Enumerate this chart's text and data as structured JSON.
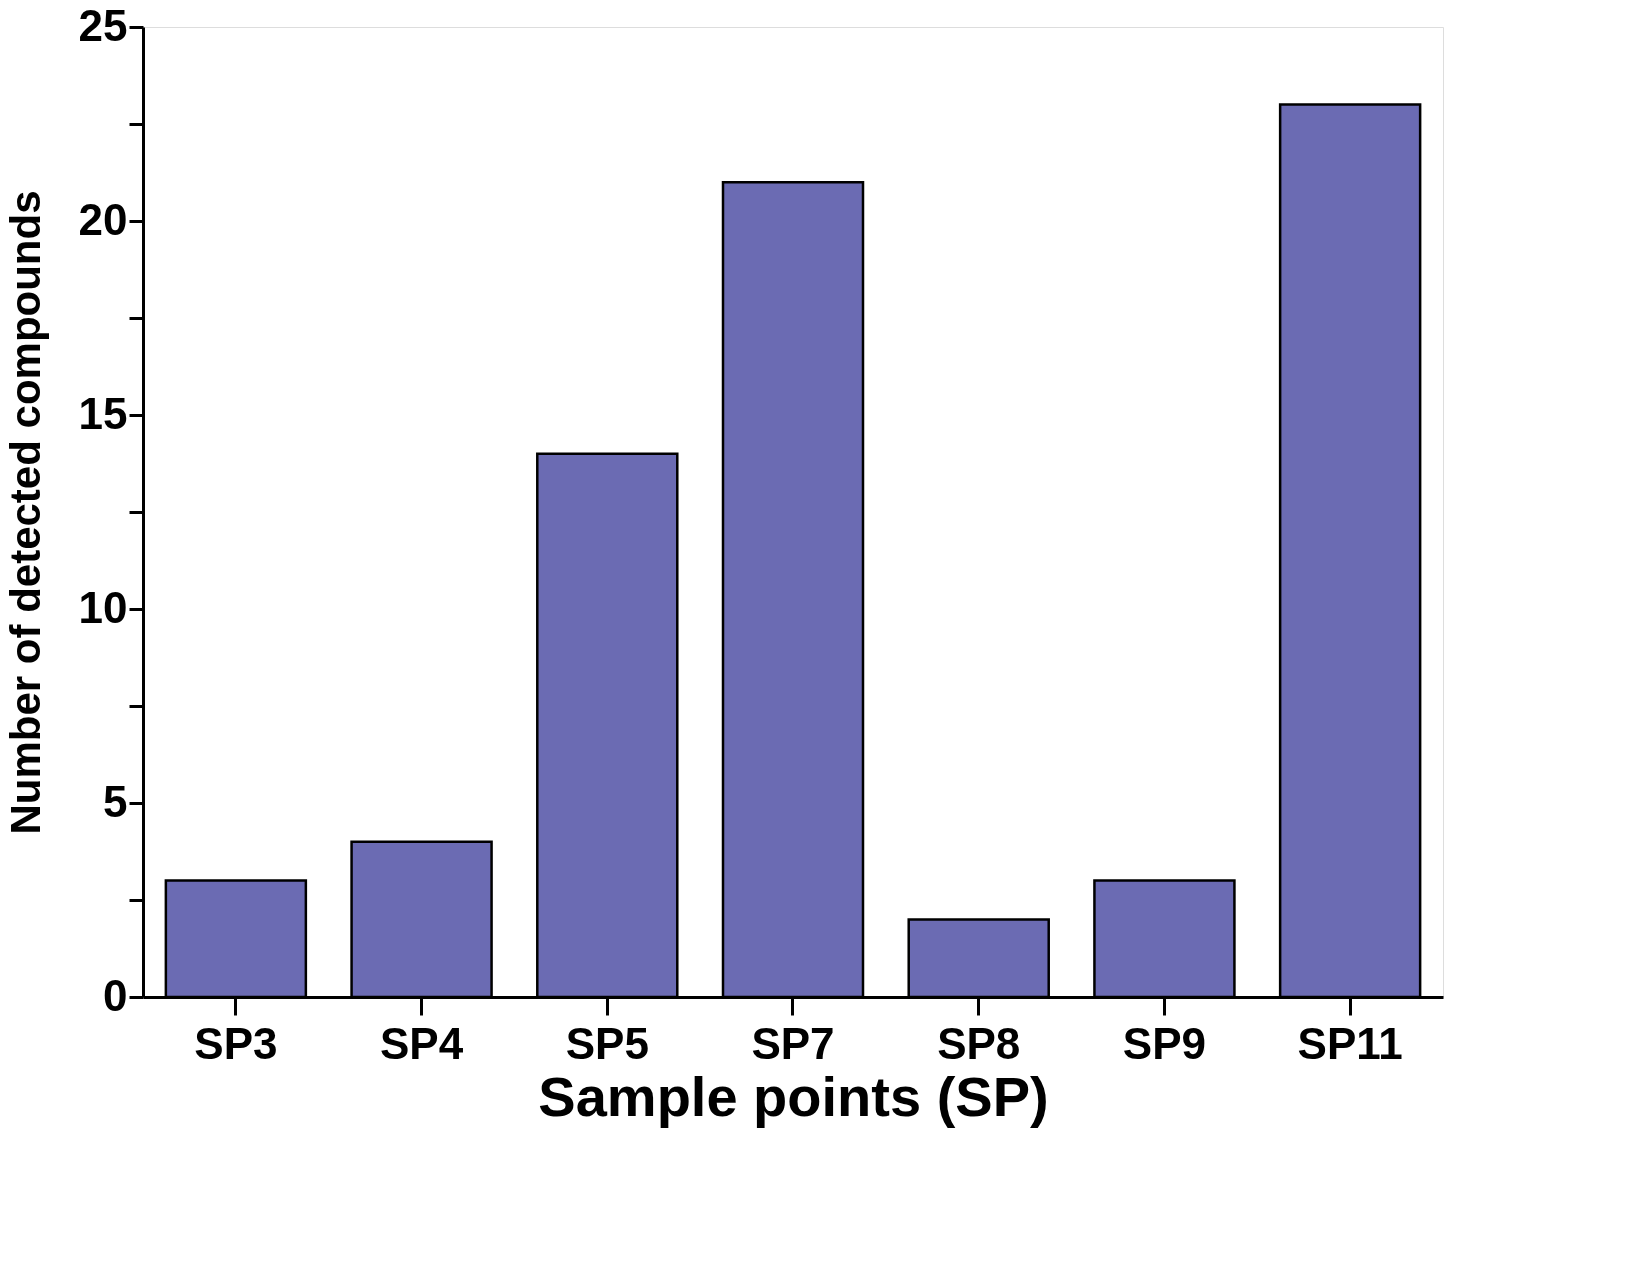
{
  "chart_data": {
    "type": "bar",
    "xlabel": "Sample points (SP)",
    "ylabel": "Number of detected compounds",
    "categories": [
      "SP3",
      "SP4",
      "SP5",
      "SP7",
      "SP8",
      "SP9",
      "SP11"
    ],
    "values": [
      3,
      4,
      14,
      21,
      2,
      3,
      23
    ],
    "color": "#6b6bb3",
    "ylim": [
      0,
      25
    ],
    "yticks": [
      0,
      {
        "value": 2.5,
        "label": null
      },
      5,
      {
        "value": 7.5,
        "label": null
      },
      10,
      {
        "value": 12.5,
        "label": null
      },
      15,
      {
        "value": 17.5,
        "label": null
      },
      20,
      {
        "value": 22.5,
        "label": null
      },
      25
    ],
    "grid": false
  }
}
